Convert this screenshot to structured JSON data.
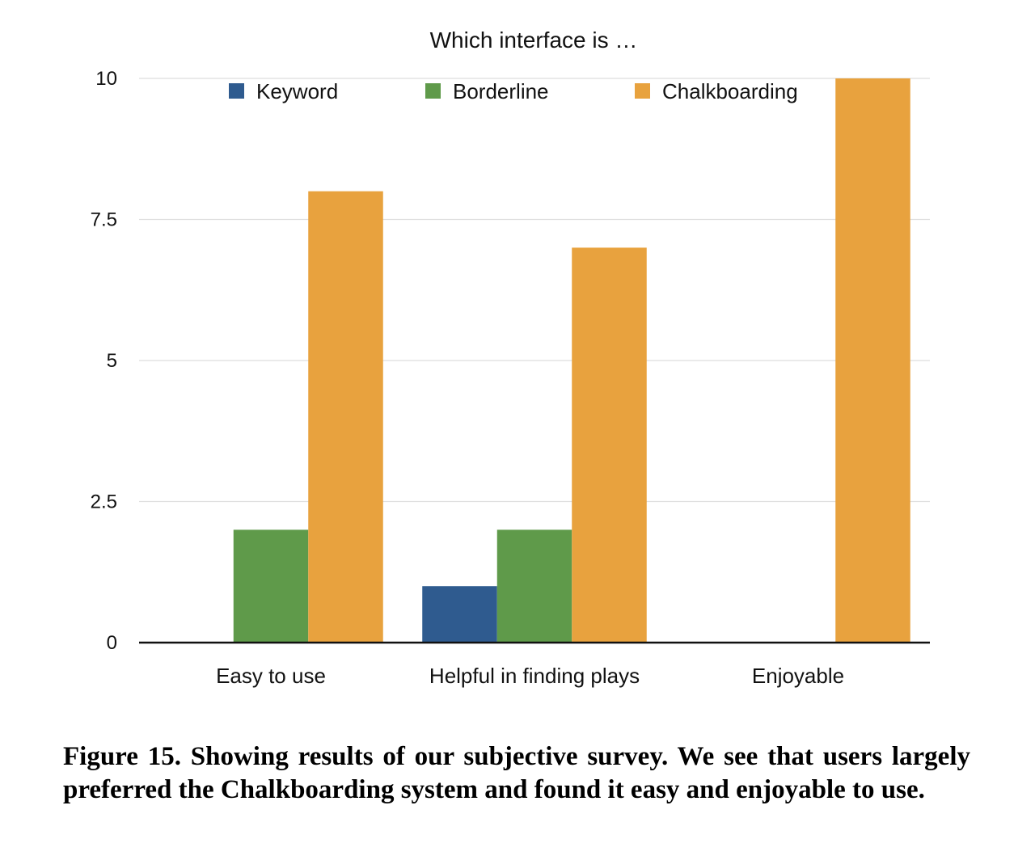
{
  "chart_data": {
    "type": "bar",
    "title": "Which interface is …",
    "xlabel": "",
    "ylabel": "",
    "categories": [
      "Easy to use",
      "Helpful in finding plays",
      "Enjoyable"
    ],
    "series": [
      {
        "name": "Keyword",
        "color": "#2f5b8f",
        "values": [
          0,
          1,
          0
        ]
      },
      {
        "name": "Borderline",
        "color": "#5f9a4a",
        "values": [
          2,
          2,
          0
        ]
      },
      {
        "name": "Chalkboarding",
        "color": "#e8a23e",
        "values": [
          8,
          7,
          10
        ]
      }
    ],
    "ylim": [
      0,
      10
    ],
    "yticks": [
      0,
      2.5,
      5,
      7.5,
      10
    ],
    "ytick_labels": [
      "0",
      "2.5",
      "5",
      "7.5",
      "10"
    ],
    "grid": true,
    "legend_position": "top"
  },
  "caption": "Figure 15. Showing results of our subjective survey. We see that users largely preferred the Chalkboarding system and found it easy and enjoyable to use."
}
